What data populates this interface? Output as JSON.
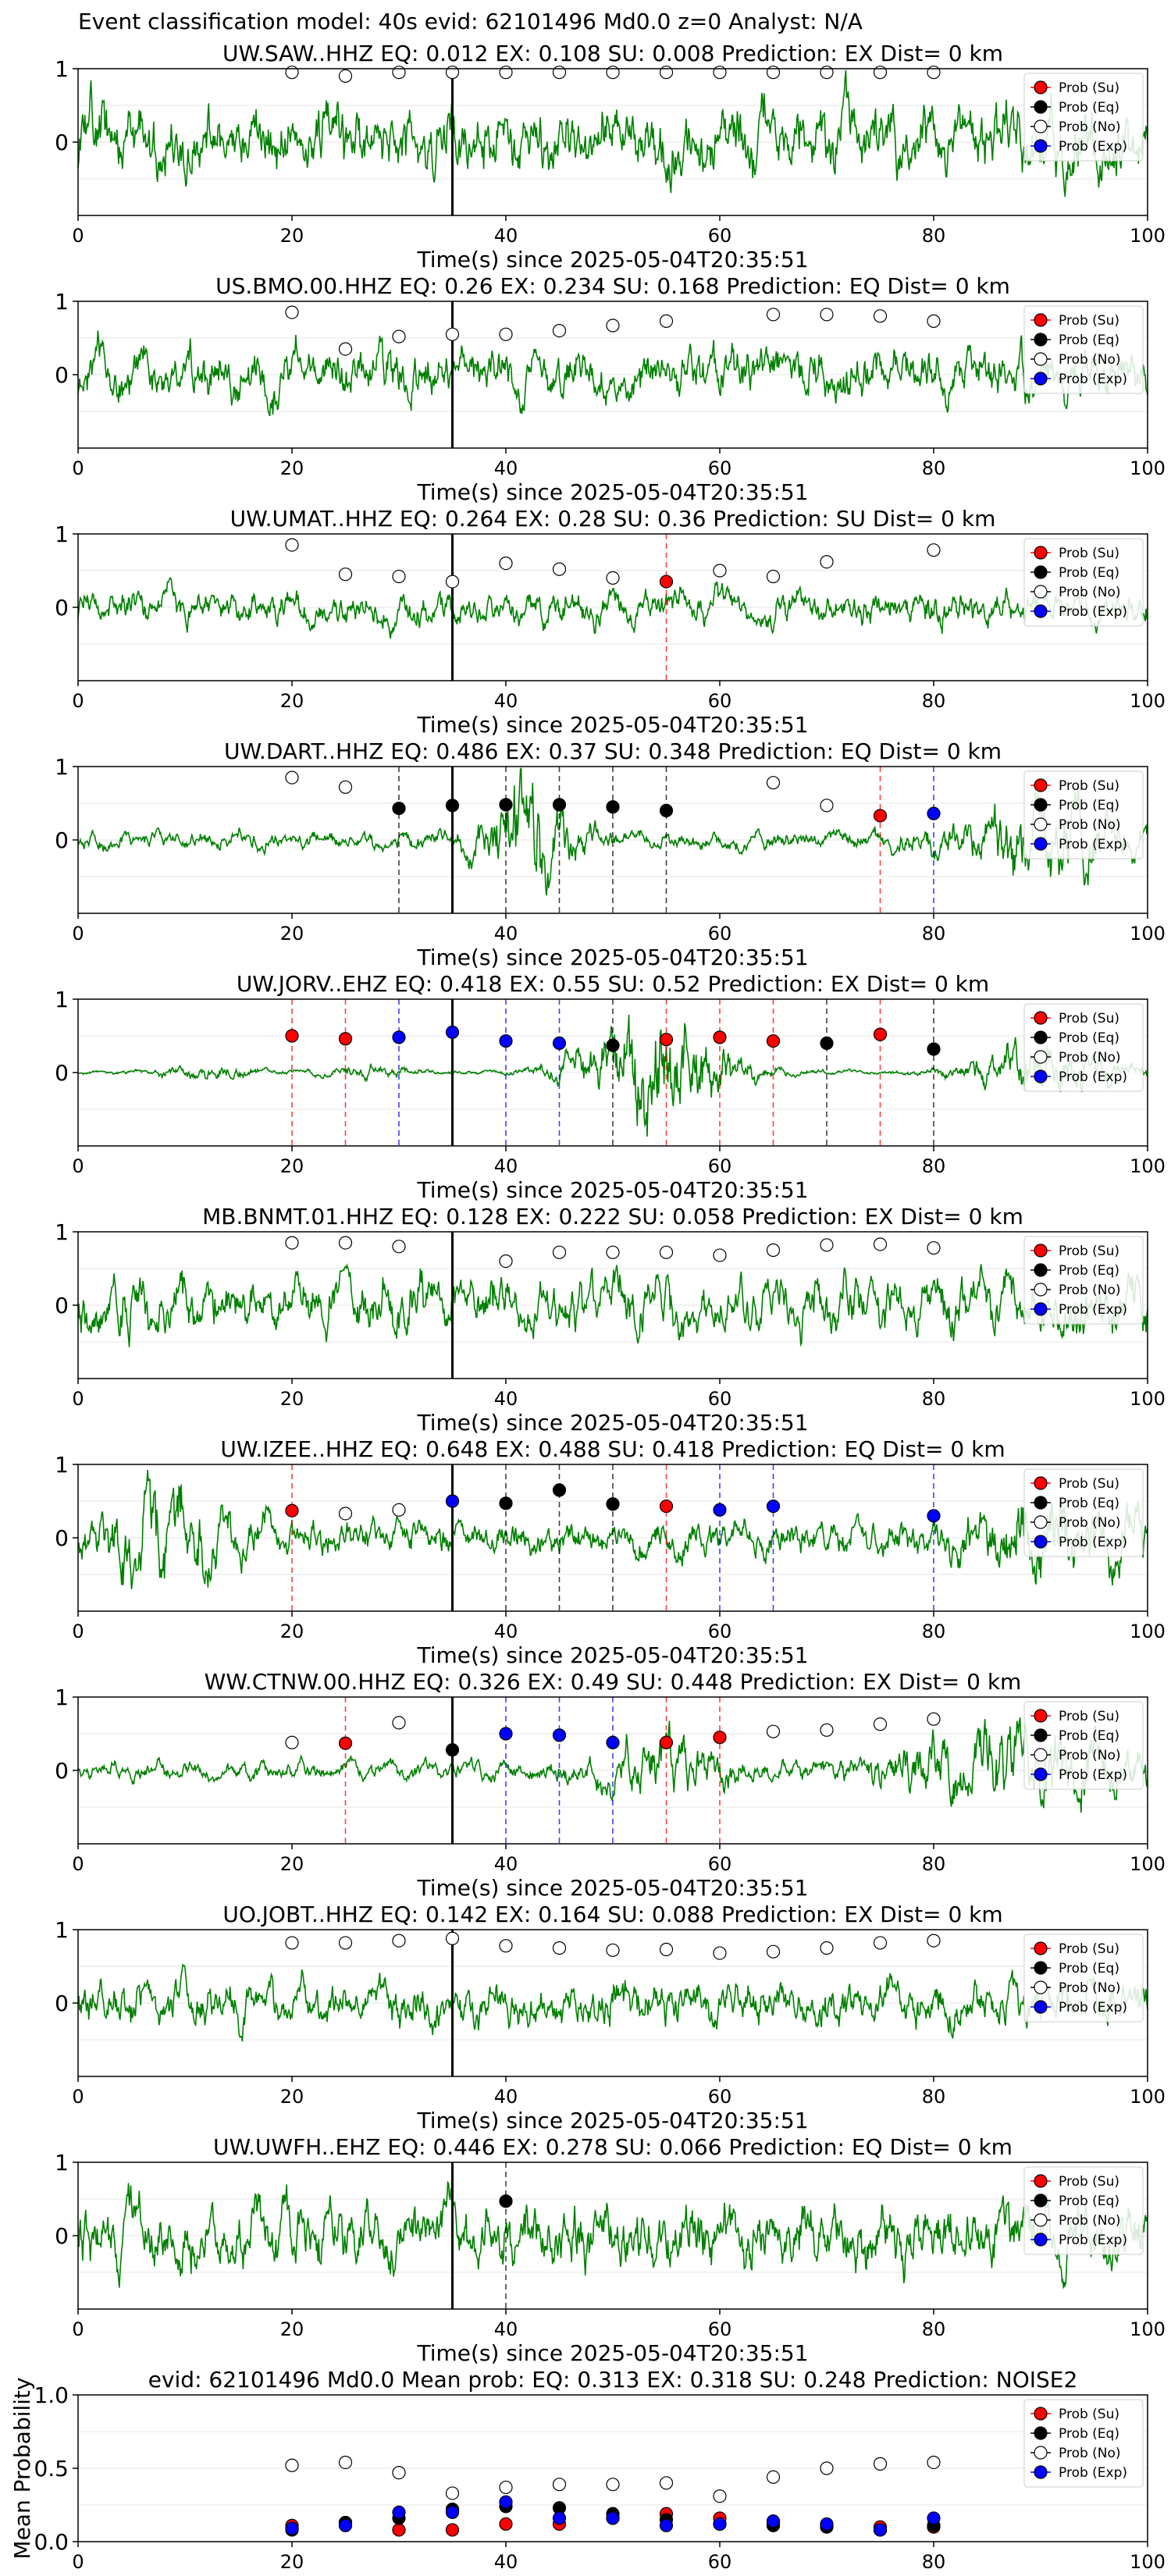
{
  "suptitle": "Event classification model: 40s evid: 62101496 Md0.0 z=0 Analyst: N/A",
  "xlabel": "Time(s) since 2025-05-04T20:35:51",
  "legend": [
    "Prob (Su)",
    "Prob (Eq)",
    "Prob (No)",
    "Prob (Exp)"
  ],
  "colors": {
    "trace": "#008000",
    "su": "#ff0000",
    "eq": "#000000",
    "no": "#ffffff",
    "exp": "#0000ff",
    "onset": "#000000"
  },
  "chart_data": [
    {
      "type": "line",
      "title": "UW.SAW..HHZ   EQ: 0.012  EX: 0.108  SU: 0.008   Prediction: EX    Dist= 0 km",
      "xlim": [
        0,
        100
      ],
      "ylim": [
        -1,
        1
      ],
      "xticks": [
        "0",
        "20",
        "40",
        "60",
        "80",
        "100"
      ],
      "yticks": [
        "1",
        "0"
      ],
      "onset": 35,
      "trace_seed": 11,
      "trace_amp": 0.6,
      "trace_bursts": [],
      "points": [
        {
          "x": 20,
          "y": 0.95,
          "c": "no"
        },
        {
          "x": 25,
          "y": 0.9,
          "c": "no"
        },
        {
          "x": 30,
          "y": 0.95,
          "c": "no"
        },
        {
          "x": 35,
          "y": 0.95,
          "c": "no"
        },
        {
          "x": 40,
          "y": 0.95,
          "c": "no"
        },
        {
          "x": 45,
          "y": 0.95,
          "c": "no"
        },
        {
          "x": 50,
          "y": 0.95,
          "c": "no"
        },
        {
          "x": 55,
          "y": 0.95,
          "c": "no"
        },
        {
          "x": 60,
          "y": 0.95,
          "c": "no"
        },
        {
          "x": 65,
          "y": 0.95,
          "c": "no"
        },
        {
          "x": 70,
          "y": 0.95,
          "c": "no"
        },
        {
          "x": 75,
          "y": 0.95,
          "c": "no"
        },
        {
          "x": 80,
          "y": 0.95,
          "c": "no"
        }
      ]
    },
    {
      "type": "line",
      "title": "US.BMO.00.HHZ   EQ: 0.26  EX: 0.234  SU: 0.168   Prediction: EQ    Dist= 0 km",
      "xlim": [
        0,
        100
      ],
      "ylim": [
        -1,
        1
      ],
      "xticks": [
        "0",
        "20",
        "40",
        "60",
        "80",
        "100"
      ],
      "yticks": [
        "1",
        "0"
      ],
      "onset": 35,
      "trace_seed": 23,
      "trace_amp": 0.45,
      "trace_bursts": [],
      "points": [
        {
          "x": 20,
          "y": 0.85,
          "c": "no"
        },
        {
          "x": 25,
          "y": 0.35,
          "c": "no"
        },
        {
          "x": 30,
          "y": 0.52,
          "c": "no"
        },
        {
          "x": 35,
          "y": 0.55,
          "c": "no"
        },
        {
          "x": 40,
          "y": 0.55,
          "c": "no"
        },
        {
          "x": 45,
          "y": 0.6,
          "c": "no"
        },
        {
          "x": 50,
          "y": 0.67,
          "c": "no"
        },
        {
          "x": 55,
          "y": 0.73,
          "c": "no"
        },
        {
          "x": 65,
          "y": 0.82,
          "c": "no"
        },
        {
          "x": 70,
          "y": 0.82,
          "c": "no"
        },
        {
          "x": 75,
          "y": 0.8,
          "c": "no"
        },
        {
          "x": 80,
          "y": 0.73,
          "c": "no"
        }
      ]
    },
    {
      "type": "line",
      "title": "UW.UMAT..HHZ   EQ: 0.264  EX: 0.28  SU: 0.36   Prediction: SU    Dist= 0 km",
      "xlim": [
        0,
        100
      ],
      "ylim": [
        -1,
        1
      ],
      "xticks": [
        "0",
        "20",
        "40",
        "60",
        "80",
        "100"
      ],
      "yticks": [
        "1",
        "0"
      ],
      "onset": 35,
      "trace_seed": 37,
      "trace_amp": 0.3,
      "trace_bursts": [],
      "points": [
        {
          "x": 20,
          "y": 0.85,
          "c": "no"
        },
        {
          "x": 25,
          "y": 0.45,
          "c": "no"
        },
        {
          "x": 30,
          "y": 0.42,
          "c": "no"
        },
        {
          "x": 35,
          "y": 0.35,
          "c": "no"
        },
        {
          "x": 40,
          "y": 0.6,
          "c": "no"
        },
        {
          "x": 45,
          "y": 0.52,
          "c": "no"
        },
        {
          "x": 50,
          "y": 0.4,
          "c": "no"
        },
        {
          "x": 55,
          "y": 0.35,
          "c": "su"
        },
        {
          "x": 60,
          "y": 0.5,
          "c": "no"
        },
        {
          "x": 65,
          "y": 0.42,
          "c": "no"
        },
        {
          "x": 70,
          "y": 0.62,
          "c": "no"
        },
        {
          "x": 80,
          "y": 0.78,
          "c": "no"
        }
      ]
    },
    {
      "type": "line",
      "title": "UW.DART..HHZ   EQ: 0.486  EX: 0.37  SU: 0.348   Prediction: EQ    Dist= 0 km",
      "xlim": [
        0,
        100
      ],
      "ylim": [
        -1,
        1
      ],
      "xticks": [
        "0",
        "20",
        "40",
        "60",
        "80",
        "100"
      ],
      "yticks": [
        "1",
        "0"
      ],
      "onset": 35,
      "trace_seed": 51,
      "trace_amp": 0.15,
      "trace_bursts": [
        [
          42,
          3,
          0.85
        ],
        [
          90,
          6,
          0.6
        ]
      ],
      "points": [
        {
          "x": 20,
          "y": 0.85,
          "c": "no"
        },
        {
          "x": 25,
          "y": 0.72,
          "c": "no"
        },
        {
          "x": 30,
          "y": 0.43,
          "c": "eq"
        },
        {
          "x": 35,
          "y": 0.47,
          "c": "eq"
        },
        {
          "x": 40,
          "y": 0.48,
          "c": "eq"
        },
        {
          "x": 45,
          "y": 0.48,
          "c": "eq"
        },
        {
          "x": 50,
          "y": 0.45,
          "c": "eq"
        },
        {
          "x": 55,
          "y": 0.4,
          "c": "eq"
        },
        {
          "x": 65,
          "y": 0.78,
          "c": "no"
        },
        {
          "x": 70,
          "y": 0.47,
          "c": "no"
        },
        {
          "x": 75,
          "y": 0.33,
          "c": "su"
        },
        {
          "x": 80,
          "y": 0.36,
          "c": "exp"
        }
      ]
    },
    {
      "type": "line",
      "title": "UW.JORV..EHZ   EQ: 0.418  EX: 0.55  SU: 0.52   Prediction: EX    Dist= 0 km",
      "xlim": [
        0,
        100
      ],
      "ylim": [
        -1,
        1
      ],
      "xticks": [
        "0",
        "20",
        "40",
        "60",
        "80",
        "100"
      ],
      "yticks": [
        "1",
        "0"
      ],
      "onset": 35,
      "trace_seed": 67,
      "trace_amp": 0.03,
      "trace_bursts": [
        [
          12,
          3,
          0.12
        ],
        [
          27,
          3,
          0.1
        ],
        [
          54,
          5,
          1.0
        ],
        [
          90,
          5,
          0.45
        ]
      ],
      "points": [
        {
          "x": 20,
          "y": 0.5,
          "c": "su"
        },
        {
          "x": 25,
          "y": 0.46,
          "c": "su"
        },
        {
          "x": 30,
          "y": 0.48,
          "c": "exp"
        },
        {
          "x": 35,
          "y": 0.55,
          "c": "exp"
        },
        {
          "x": 40,
          "y": 0.43,
          "c": "exp"
        },
        {
          "x": 45,
          "y": 0.4,
          "c": "exp"
        },
        {
          "x": 50,
          "y": 0.37,
          "c": "eq"
        },
        {
          "x": 55,
          "y": 0.45,
          "c": "su"
        },
        {
          "x": 60,
          "y": 0.48,
          "c": "su"
        },
        {
          "x": 65,
          "y": 0.43,
          "c": "su"
        },
        {
          "x": 70,
          "y": 0.4,
          "c": "eq"
        },
        {
          "x": 75,
          "y": 0.52,
          "c": "su"
        },
        {
          "x": 80,
          "y": 0.32,
          "c": "eq"
        }
      ]
    },
    {
      "type": "line",
      "title": "MB.BNMT.01.HHZ   EQ: 0.128  EX: 0.222  SU: 0.058   Prediction: EX    Dist= 0 km",
      "xlim": [
        0,
        100
      ],
      "ylim": [
        -1,
        1
      ],
      "xticks": [
        "0",
        "20",
        "40",
        "60",
        "80",
        "100"
      ],
      "yticks": [
        "1",
        "0"
      ],
      "onset": 35,
      "trace_seed": 79,
      "trace_amp": 0.5,
      "trace_bursts": [],
      "points": [
        {
          "x": 20,
          "y": 0.85,
          "c": "no"
        },
        {
          "x": 25,
          "y": 0.85,
          "c": "no"
        },
        {
          "x": 30,
          "y": 0.8,
          "c": "no"
        },
        {
          "x": 40,
          "y": 0.6,
          "c": "no"
        },
        {
          "x": 45,
          "y": 0.72,
          "c": "no"
        },
        {
          "x": 50,
          "y": 0.72,
          "c": "no"
        },
        {
          "x": 55,
          "y": 0.72,
          "c": "no"
        },
        {
          "x": 60,
          "y": 0.68,
          "c": "no"
        },
        {
          "x": 65,
          "y": 0.75,
          "c": "no"
        },
        {
          "x": 70,
          "y": 0.82,
          "c": "no"
        },
        {
          "x": 75,
          "y": 0.83,
          "c": "no"
        },
        {
          "x": 80,
          "y": 0.78,
          "c": "no"
        }
      ]
    },
    {
      "type": "line",
      "title": "UW.IZEE..HHZ   EQ: 0.648  EX: 0.488  SU: 0.418   Prediction: EQ    Dist= 0 km",
      "xlim": [
        0,
        100
      ],
      "ylim": [
        -1,
        1
      ],
      "xticks": [
        "0",
        "20",
        "40",
        "60",
        "80",
        "100"
      ],
      "yticks": [
        "1",
        "0"
      ],
      "onset": 35,
      "trace_seed": 91,
      "trace_amp": 0.3,
      "trace_bursts": [
        [
          8,
          4,
          0.6
        ],
        [
          92,
          6,
          0.5
        ]
      ],
      "points": [
        {
          "x": 20,
          "y": 0.37,
          "c": "su"
        },
        {
          "x": 25,
          "y": 0.33,
          "c": "no"
        },
        {
          "x": 30,
          "y": 0.38,
          "c": "no"
        },
        {
          "x": 35,
          "y": 0.5,
          "c": "exp"
        },
        {
          "x": 40,
          "y": 0.47,
          "c": "eq"
        },
        {
          "x": 45,
          "y": 0.65,
          "c": "eq"
        },
        {
          "x": 50,
          "y": 0.46,
          "c": "eq"
        },
        {
          "x": 55,
          "y": 0.43,
          "c": "su"
        },
        {
          "x": 60,
          "y": 0.38,
          "c": "exp"
        },
        {
          "x": 65,
          "y": 0.43,
          "c": "exp"
        },
        {
          "x": 80,
          "y": 0.3,
          "c": "exp"
        }
      ]
    },
    {
      "type": "line",
      "title": "WW.CTNW.00.HHZ   EQ: 0.326  EX: 0.49  SU: 0.448   Prediction: EX    Dist= 0 km",
      "xlim": [
        0,
        100
      ],
      "ylim": [
        -1,
        1
      ],
      "xticks": [
        "0",
        "20",
        "40",
        "60",
        "80",
        "100"
      ],
      "yticks": [
        "1",
        "0"
      ],
      "onset": 35,
      "trace_seed": 103,
      "trace_amp": 0.15,
      "trace_bursts": [
        [
          55,
          4,
          0.45
        ],
        [
          88,
          8,
          0.65
        ]
      ],
      "points": [
        {
          "x": 20,
          "y": 0.38,
          "c": "no"
        },
        {
          "x": 25,
          "y": 0.37,
          "c": "su"
        },
        {
          "x": 30,
          "y": 0.65,
          "c": "no"
        },
        {
          "x": 35,
          "y": 0.28,
          "c": "eq"
        },
        {
          "x": 40,
          "y": 0.5,
          "c": "exp"
        },
        {
          "x": 45,
          "y": 0.48,
          "c": "exp"
        },
        {
          "x": 50,
          "y": 0.38,
          "c": "exp"
        },
        {
          "x": 55,
          "y": 0.38,
          "c": "su"
        },
        {
          "x": 60,
          "y": 0.45,
          "c": "su"
        },
        {
          "x": 65,
          "y": 0.53,
          "c": "no"
        },
        {
          "x": 70,
          "y": 0.55,
          "c": "no"
        },
        {
          "x": 75,
          "y": 0.63,
          "c": "no"
        },
        {
          "x": 80,
          "y": 0.7,
          "c": "no"
        }
      ]
    },
    {
      "type": "line",
      "title": "UO.JOBT..HHZ   EQ: 0.142  EX: 0.164  SU: 0.088   Prediction: EX    Dist= 0 km",
      "xlim": [
        0,
        100
      ],
      "ylim": [
        -1,
        1
      ],
      "xticks": [
        "0",
        "20",
        "40",
        "60",
        "80",
        "100"
      ],
      "yticks": [
        "1",
        "0"
      ],
      "onset": 35,
      "trace_seed": 117,
      "trace_amp": 0.4,
      "trace_bursts": [],
      "points": [
        {
          "x": 20,
          "y": 0.82,
          "c": "no"
        },
        {
          "x": 25,
          "y": 0.82,
          "c": "no"
        },
        {
          "x": 30,
          "y": 0.85,
          "c": "no"
        },
        {
          "x": 35,
          "y": 0.88,
          "c": "no"
        },
        {
          "x": 40,
          "y": 0.78,
          "c": "no"
        },
        {
          "x": 45,
          "y": 0.75,
          "c": "no"
        },
        {
          "x": 50,
          "y": 0.72,
          "c": "no"
        },
        {
          "x": 55,
          "y": 0.73,
          "c": "no"
        },
        {
          "x": 60,
          "y": 0.68,
          "c": "no"
        },
        {
          "x": 65,
          "y": 0.7,
          "c": "no"
        },
        {
          "x": 70,
          "y": 0.75,
          "c": "no"
        },
        {
          "x": 75,
          "y": 0.82,
          "c": "no"
        },
        {
          "x": 80,
          "y": 0.85,
          "c": "no"
        }
      ]
    },
    {
      "type": "line",
      "title": "UW.UWFH..EHZ   EQ: 0.446  EX: 0.278  SU: 0.066   Prediction: EQ    Dist= 0 km",
      "xlim": [
        0,
        100
      ],
      "ylim": [
        -1,
        1
      ],
      "xticks": [
        "0",
        "20",
        "40",
        "60",
        "80",
        "100"
      ],
      "yticks": [
        "1",
        "0"
      ],
      "onset": 35,
      "trace_seed": 131,
      "trace_amp": 0.55,
      "trace_bursts": [],
      "points": [
        {
          "x": 40,
          "y": 0.47,
          "c": "eq"
        }
      ]
    },
    {
      "type": "scatter",
      "title": "evid: 62101496  Md0.0   Mean prob:   EQ: 0.313  EX: 0.318  SU: 0.248   Prediction: NOISE2",
      "ylabel": "Mean Probability",
      "xlim": [
        0,
        100
      ],
      "ylim": [
        0,
        1
      ],
      "xticks": [
        "0",
        "20",
        "40",
        "60",
        "80",
        "100"
      ],
      "yticks": [
        "1.0",
        "0.5",
        "0.0"
      ],
      "x": [
        20,
        25,
        30,
        35,
        40,
        45,
        50,
        55,
        60,
        65,
        70,
        75,
        80
      ],
      "series": [
        {
          "name": "Prob (No)",
          "c": "no",
          "values": [
            0.52,
            0.54,
            0.47,
            0.33,
            0.37,
            0.39,
            0.39,
            0.4,
            0.31,
            0.44,
            0.5,
            0.53,
            0.54
          ]
        },
        {
          "name": "Prob (Su)",
          "c": "su",
          "values": [
            0.11,
            0.13,
            0.08,
            0.08,
            0.12,
            0.12,
            0.16,
            0.19,
            0.16,
            0.12,
            0.11,
            0.1,
            0.1
          ]
        },
        {
          "name": "Prob (Eq)",
          "c": "eq",
          "values": [
            0.08,
            0.13,
            0.16,
            0.22,
            0.24,
            0.23,
            0.19,
            0.15,
            0.12,
            0.11,
            0.1,
            0.08,
            0.11
          ]
        },
        {
          "name": "Prob (Exp)",
          "c": "exp",
          "values": [
            0.09,
            0.11,
            0.2,
            0.2,
            0.27,
            0.16,
            0.16,
            0.11,
            0.12,
            0.14,
            0.12,
            0.08,
            0.16
          ]
        }
      ]
    }
  ]
}
